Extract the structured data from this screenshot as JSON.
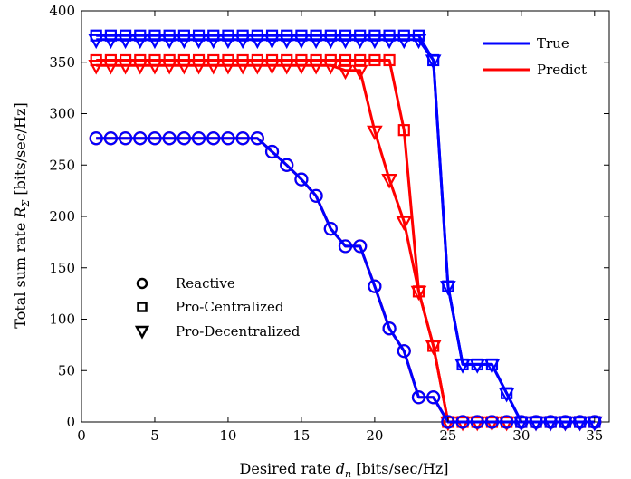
{
  "chart_data": {
    "type": "line",
    "title": "",
    "xlabel": "Desired rate d_n [bits/sec/Hz]",
    "ylabel": "Total sum rate R_Σ [bits/sec/Hz]",
    "xlabel_parts": {
      "pre": "Desired rate ",
      "sym": "d",
      "sub": "n",
      "post": " [bits/sec/Hz]"
    },
    "ylabel_parts": {
      "pre": "Total sum rate ",
      "sym": "R",
      "sub": "Σ",
      "post": " [bits/sec/Hz]"
    },
    "xlim": [
      0,
      36
    ],
    "ylim": [
      0,
      400
    ],
    "xticks": [
      0,
      5,
      10,
      15,
      20,
      25,
      30,
      35
    ],
    "yticks": [
      0,
      50,
      100,
      150,
      200,
      250,
      300,
      350,
      400
    ],
    "grid": false,
    "colors": {
      "true": "#0000ff",
      "predict": "#ff0000",
      "axis": "#000000"
    },
    "legend_color": {
      "position": "top-right",
      "entries": [
        {
          "label": "True",
          "color": "#0000ff"
        },
        {
          "label": "Predict",
          "color": "#ff0000"
        }
      ]
    },
    "legend_marker": {
      "position": "center-left",
      "entries": [
        {
          "label": "Reactive",
          "marker": "circle"
        },
        {
          "label": "Pro-Centralized",
          "marker": "square"
        },
        {
          "label": "Pro-Decentralized",
          "marker": "triangle-down"
        }
      ]
    },
    "x": [
      1,
      2,
      3,
      4,
      5,
      6,
      7,
      8,
      9,
      10,
      11,
      12,
      13,
      14,
      15,
      16,
      17,
      18,
      19,
      20,
      21,
      22,
      23,
      24,
      25,
      26,
      27,
      28,
      29,
      30,
      31,
      32,
      33,
      34,
      35
    ],
    "series": [
      {
        "scheme": "Pro-Centralized",
        "type": "Predict",
        "marker": "square",
        "color": "#ff0000",
        "values": [
          352,
          352,
          352,
          352,
          352,
          352,
          352,
          352,
          352,
          352,
          352,
          352,
          352,
          352,
          352,
          352,
          352,
          352,
          352,
          352,
          352,
          284,
          127,
          74,
          0,
          0,
          0,
          0,
          0,
          0,
          0,
          0,
          0,
          0,
          0
        ]
      },
      {
        "scheme": "Pro-Decentralized",
        "type": "Predict",
        "marker": "triangle-down",
        "color": "#ff0000",
        "values": [
          347,
          347,
          347,
          347,
          347,
          347,
          347,
          347,
          347,
          347,
          347,
          347,
          347,
          347,
          347,
          347,
          347,
          342,
          342,
          283,
          236,
          195,
          127,
          74,
          0,
          0,
          0,
          0,
          0,
          0,
          0,
          0,
          0,
          0,
          0
        ]
      },
      {
        "scheme": "Reactive",
        "type": "Predict",
        "marker": "circle",
        "color": "#ff0000",
        "values": [
          276,
          276,
          276,
          276,
          276,
          276,
          276,
          276,
          276,
          276,
          276,
          276,
          263,
          250,
          236,
          220,
          188,
          171,
          171,
          132,
          91,
          69,
          24,
          24,
          0,
          0,
          0,
          0,
          0,
          0,
          0,
          0,
          0,
          0,
          0
        ]
      },
      {
        "scheme": "Reactive",
        "type": "True",
        "marker": "circle",
        "color": "#0000ff",
        "values": [
          276,
          276,
          276,
          276,
          276,
          276,
          276,
          276,
          276,
          276,
          276,
          276,
          263,
          250,
          236,
          220,
          188,
          171,
          171,
          132,
          91,
          69,
          24,
          24,
          0,
          0,
          0,
          0,
          0,
          0,
          0,
          0,
          0,
          0,
          0
        ]
      },
      {
        "scheme": "Pro-Centralized",
        "type": "True",
        "marker": "square",
        "color": "#0000ff",
        "values": [
          376,
          376,
          376,
          376,
          376,
          376,
          376,
          376,
          376,
          376,
          376,
          376,
          376,
          376,
          376,
          376,
          376,
          376,
          376,
          376,
          376,
          376,
          376,
          352,
          132,
          56,
          56,
          56,
          28,
          0,
          0,
          0,
          0,
          0,
          0
        ]
      },
      {
        "scheme": "Pro-Decentralized",
        "type": "True",
        "marker": "triangle-down",
        "color": "#0000ff",
        "values": [
          372,
          372,
          372,
          372,
          372,
          372,
          372,
          372,
          372,
          372,
          372,
          372,
          372,
          372,
          372,
          372,
          372,
          372,
          372,
          372,
          372,
          372,
          372,
          352,
          132,
          56,
          56,
          56,
          28,
          0,
          0,
          0,
          0,
          0,
          0
        ]
      }
    ]
  }
}
